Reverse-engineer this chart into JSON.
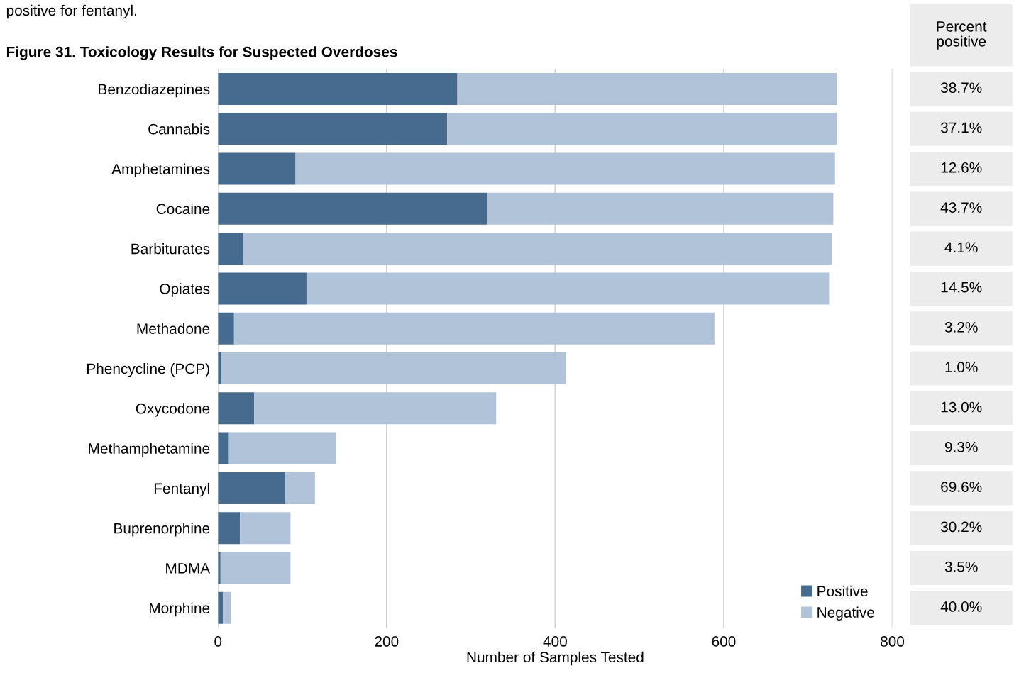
{
  "chart_data": {
    "type": "bar",
    "orientation": "horizontal",
    "stacked": true,
    "title": "Figure 31. Toxicology Results for Suspected Overdoses",
    "xlabel": "Number of Samples Tested",
    "categories": [
      "Benzodiazepines",
      "Cannabis",
      "Amphetamines",
      "Cocaine",
      "Barbiturates",
      "Opiates",
      "Methadone",
      "Phencycline (PCP)",
      "Oxycodone",
      "Methamphetamine",
      "Fentanyl",
      "Buprenorphine",
      "MDMA",
      "Morphine"
    ],
    "series": [
      {
        "name": "Positive",
        "color": "#476a8f",
        "values": [
          284,
          272,
          92,
          319,
          30,
          105,
          19,
          4,
          43,
          13,
          80,
          26,
          3,
          6
        ]
      },
      {
        "name": "Negative",
        "color": "#b0c3d9",
        "values": [
          450,
          462,
          640,
          411,
          698,
          620,
          570,
          409,
          287,
          127,
          35,
          60,
          83,
          9
        ]
      }
    ],
    "xlim": [
      0,
      800
    ],
    "xticks": [
      0,
      200,
      400,
      600,
      800
    ],
    "grid": "x",
    "legend": "bottom right",
    "annotations": [
      "positive for fentanyl.",
      "Percent positive",
      "38.7%",
      "37.1%",
      "12.6%",
      "43.7%",
      "4.1%",
      "14.5%",
      "3.2%",
      "1.0%",
      "13.0%",
      "9.3%",
      "69.6%",
      "30.2%",
      "3.5%",
      "40.0%"
    ]
  }
}
